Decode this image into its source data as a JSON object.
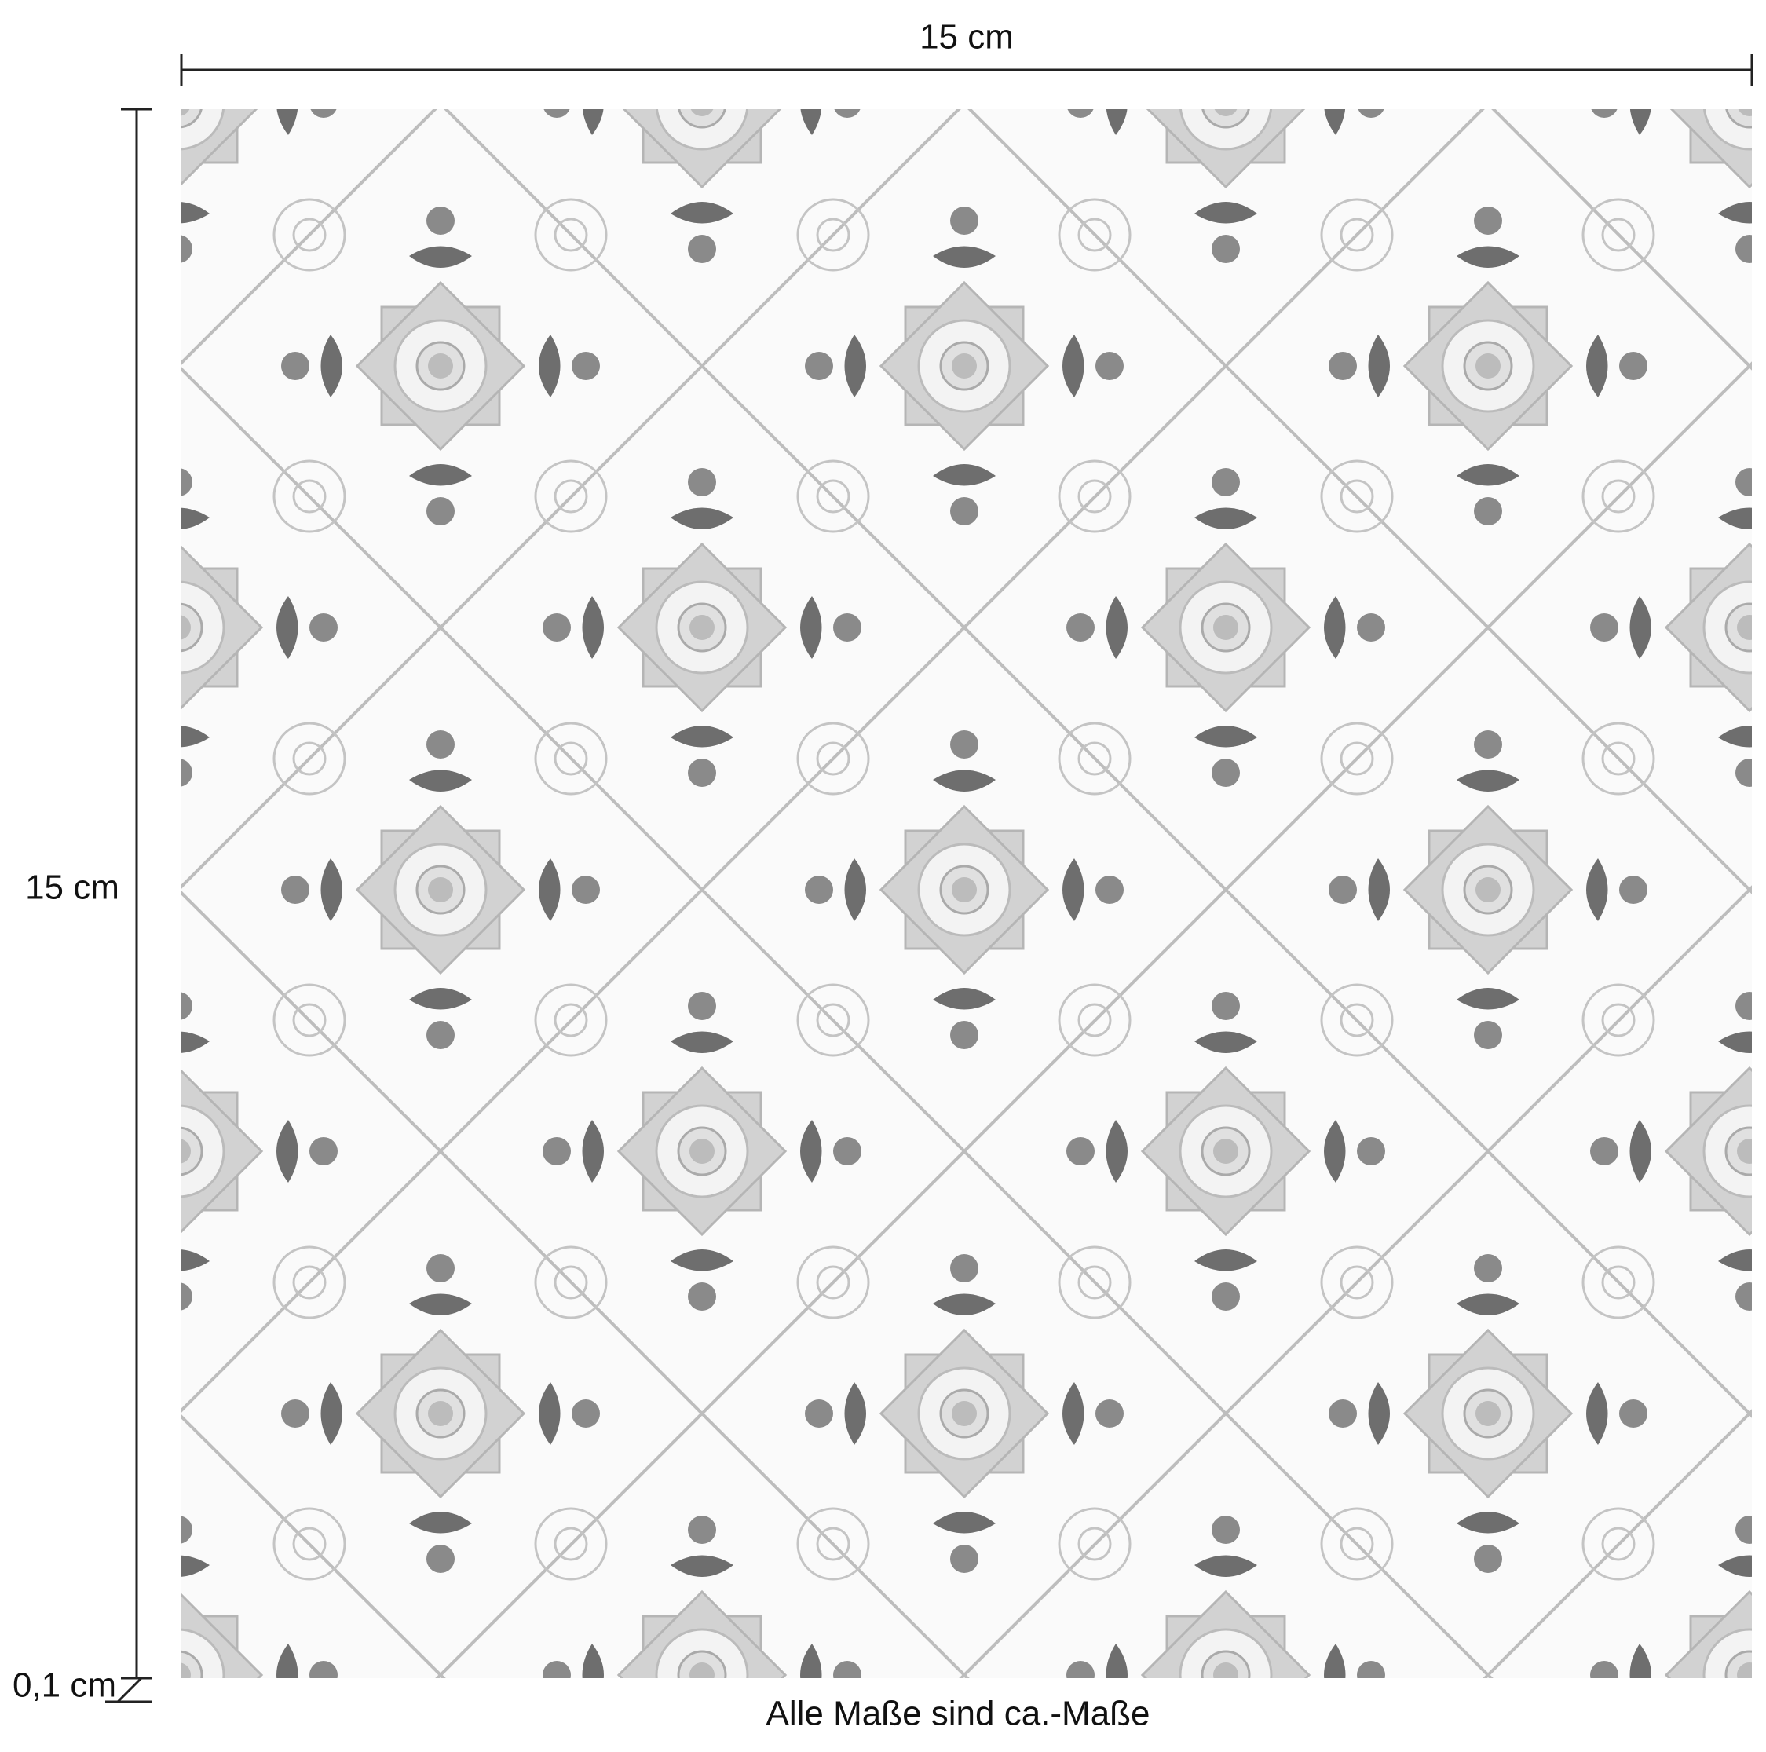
{
  "dimensions": {
    "width": "15 cm",
    "height": "15 cm",
    "thickness": "0,1 cm"
  },
  "note": "Alle Maße sind ca.-Maße"
}
